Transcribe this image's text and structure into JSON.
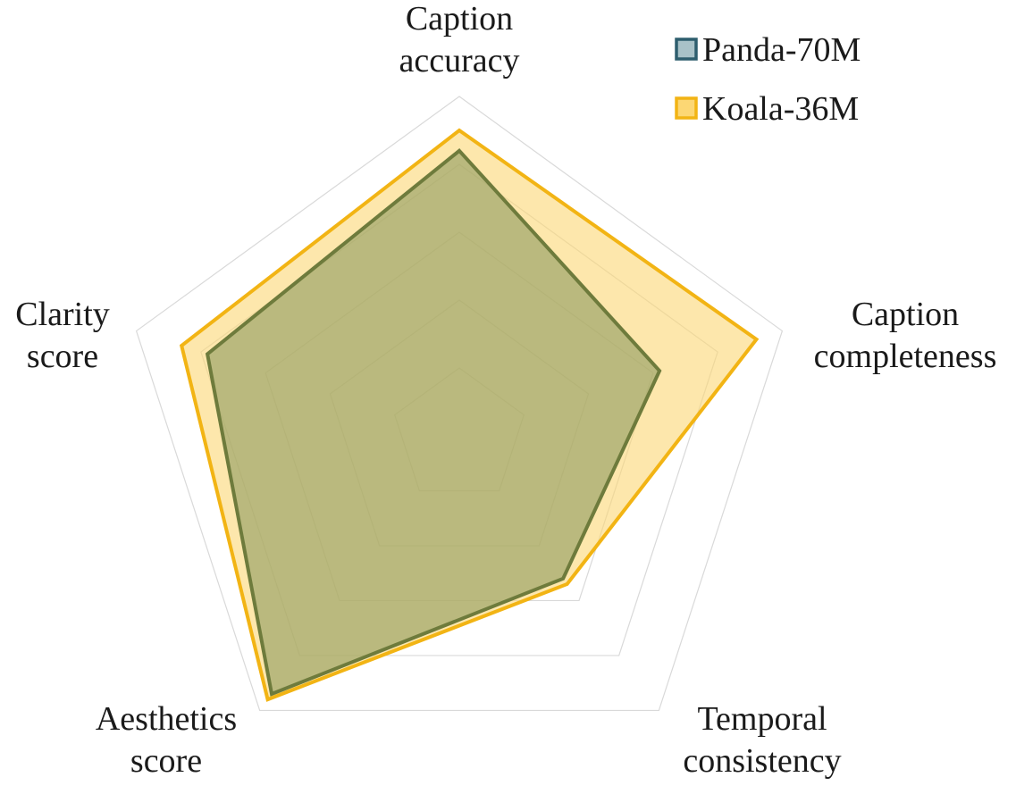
{
  "chart_data": {
    "type": "radar",
    "axes": [
      [
        "Caption",
        "accuracy"
      ],
      [
        "Caption",
        "completeness"
      ],
      [
        "Temporal",
        "consistency"
      ],
      [
        "Aesthetics",
        "score"
      ],
      [
        "Clarity",
        "score"
      ]
    ],
    "max_value": 5,
    "grid_levels": 5,
    "grid": true,
    "legend_position": "top-right",
    "series": [
      {
        "name": "Panda-70M",
        "values": [
          4.2,
          3.1,
          2.6,
          4.7,
          3.9
        ],
        "stroke": "#6e7b3c",
        "fill": "#8e9b5f",
        "legend_stroke": "#2e5e6e",
        "legend_fill": "#a9c2c8"
      },
      {
        "name": "Koala-36M",
        "values": [
          4.5,
          4.6,
          2.7,
          4.8,
          4.3
        ],
        "stroke": "#f2b414",
        "fill": "#fcd774",
        "legend_stroke": "#f2b414",
        "legend_fill": "#fcd774"
      }
    ]
  }
}
